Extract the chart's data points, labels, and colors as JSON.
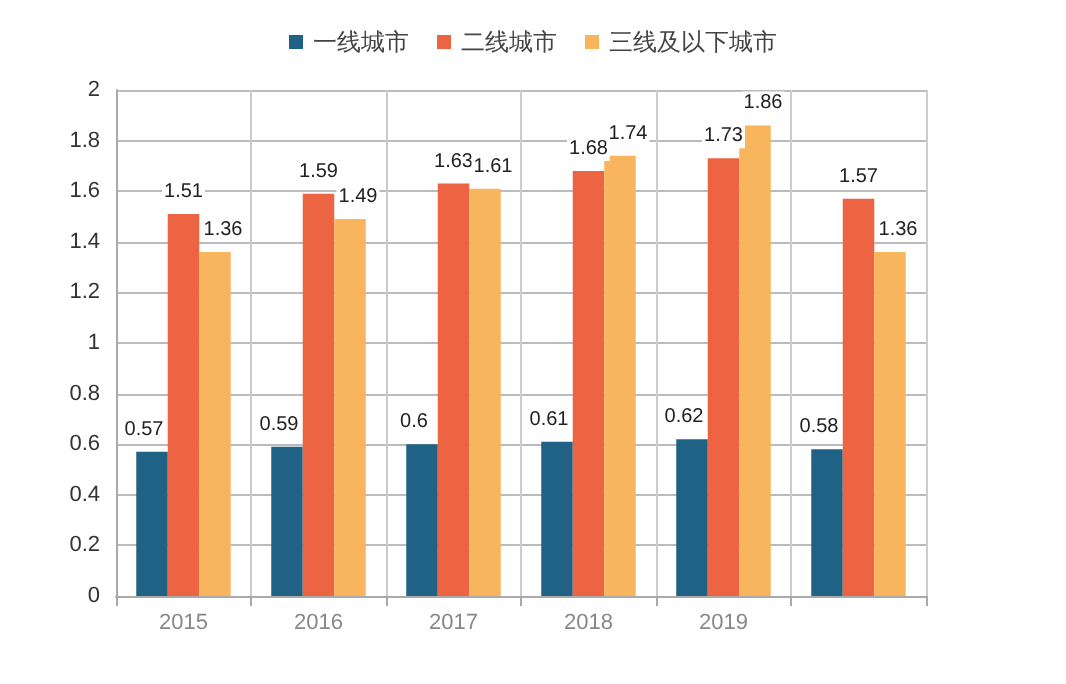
{
  "chart_data": {
    "type": "bar",
    "categories": [
      "2015",
      "2016",
      "2017",
      "2018",
      "2019",
      null
    ],
    "series": [
      {
        "name": "一线城市",
        "color": "#1f6285",
        "values": [
          0.57,
          0.59,
          0.6,
          0.61,
          0.62,
          0.58
        ]
      },
      {
        "name": "二线城市",
        "color": "#ec6441",
        "values": [
          1.51,
          1.59,
          1.63,
          1.68,
          1.73,
          1.57
        ]
      },
      {
        "name": "三线及以下城市",
        "color": "#f9b45e",
        "values": [
          1.36,
          1.49,
          1.61,
          1.74,
          1.86,
          1.36
        ]
      }
    ],
    "ylim": [
      0,
      2
    ],
    "yticks": [
      0,
      0.2,
      0.4,
      0.6,
      0.8,
      1,
      1.2,
      1.4,
      1.6,
      1.8,
      2
    ],
    "grid": true,
    "legend": "top",
    "data_labels": true
  }
}
